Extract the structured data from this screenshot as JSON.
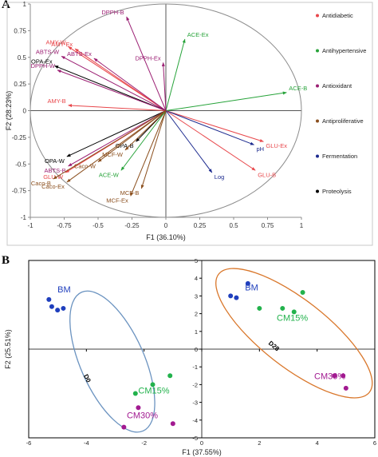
{
  "panel_a_label": "A",
  "panel_b_label": "B",
  "chart_data": [
    {
      "type": "scatter",
      "panel": "A",
      "title": "",
      "xlabel": "F1 (36.10%)",
      "ylabel": "F2 (28.23%)",
      "xlim": [
        -1,
        1
      ],
      "ylim": [
        -1,
        1
      ],
      "xticks": [
        "-1",
        "-0.75",
        "-0.5",
        "-0.25",
        "0",
        "0.25",
        "0.5",
        "0.75",
        "1"
      ],
      "yticks": [
        "1",
        "0.75",
        "0.5",
        "0.25",
        "0",
        "-0.25",
        "-0.5",
        "-0.75",
        "-1"
      ],
      "correlation_circle": true,
      "legend_position": "right",
      "groups": [
        {
          "name": "Antidiabetic",
          "color": "#e8474b"
        },
        {
          "name": "Antihypertensive",
          "color": "#27a33a"
        },
        {
          "name": "Antioxidant",
          "color": "#9b1f73"
        },
        {
          "name": "Antiproliferative",
          "color": "#8b4f1e"
        },
        {
          "name": "Fermentation",
          "color": "#1d2b8f"
        },
        {
          "name": "Proteolysis",
          "color": "#000000"
        }
      ],
      "vectors": [
        {
          "label": "DPPH-B",
          "group": 2,
          "x": -0.29,
          "y": 0.88
        },
        {
          "label": "ACE-Ex",
          "group": 1,
          "x": 0.14,
          "y": 0.67
        },
        {
          "label": "AMY-W",
          "group": 0,
          "x": -0.72,
          "y": 0.6
        },
        {
          "label": "AMY-Ex",
          "group": 0,
          "x": -0.67,
          "y": 0.58
        },
        {
          "label": "ABTS-W",
          "group": 2,
          "x": -0.77,
          "y": 0.51
        },
        {
          "label": "ABTS-Ex",
          "group": 2,
          "x": -0.53,
          "y": 0.49
        },
        {
          "label": "DPPH-Ex",
          "group": 2,
          "x": -0.02,
          "y": 0.45
        },
        {
          "label": "OPA-Ex",
          "group": 5,
          "x": -0.82,
          "y": 0.42
        },
        {
          "label": "DPPH-W",
          "group": 2,
          "x": -0.8,
          "y": 0.38
        },
        {
          "label": "ACE-B",
          "group": 1,
          "x": 0.89,
          "y": 0.17
        },
        {
          "label": "AMY-B",
          "group": 0,
          "x": -0.72,
          "y": 0.05
        },
        {
          "label": "GLU-Ex",
          "group": 0,
          "x": 0.72,
          "y": -0.29
        },
        {
          "label": "pH",
          "group": 4,
          "x": 0.65,
          "y": -0.32
        },
        {
          "label": "OPA-W",
          "group": 5,
          "x": -0.73,
          "y": -0.43
        },
        {
          "label": "OPA-B",
          "group": 5,
          "x": -0.22,
          "y": -0.29
        },
        {
          "label": "MCF-W",
          "group": 3,
          "x": -0.3,
          "y": -0.37
        },
        {
          "label": "ABTS-B",
          "group": 2,
          "x": -0.72,
          "y": -0.52
        },
        {
          "label": "GLU-W",
          "group": 0,
          "x": -0.74,
          "y": -0.58
        },
        {
          "label": "Caco-W",
          "group": 3,
          "x": -0.5,
          "y": -0.48
        },
        {
          "label": "ACE-W",
          "group": 1,
          "x": -0.33,
          "y": -0.56
        },
        {
          "label": "GLU-B",
          "group": 0,
          "x": 0.66,
          "y": -0.56
        },
        {
          "label": "Log",
          "group": 4,
          "x": 0.34,
          "y": -0.58
        },
        {
          "label": "Caco-B",
          "group": 3,
          "x": -0.83,
          "y": -0.64
        },
        {
          "label": "Caco-Ex",
          "group": 3,
          "x": -0.73,
          "y": -0.67
        },
        {
          "label": "MCF-B",
          "group": 3,
          "x": -0.18,
          "y": -0.73
        },
        {
          "label": "MCF-Ex",
          "group": 3,
          "x": -0.26,
          "y": -0.8
        }
      ]
    },
    {
      "type": "scatter",
      "panel": "B",
      "title": "",
      "xlabel": "F1 (37.55%)",
      "ylabel": "F2 (25.51%)",
      "xlim": [
        -6,
        6
      ],
      "ylim": [
        -5,
        5
      ],
      "xticks": [
        -6,
        -4,
        -2,
        0,
        2,
        4,
        6
      ],
      "yticks": [
        5,
        4,
        3,
        2,
        1,
        0,
        -1,
        -2,
        -3,
        -4,
        -5
      ],
      "ellipses": [
        {
          "label": "D0",
          "color": "#6b93c0"
        },
        {
          "label": "D28",
          "color": "#d9772b"
        }
      ],
      "series": [
        {
          "name": "BM",
          "color": "#1f3fbd",
          "points": [
            [
              -5.3,
              2.8
            ],
            [
              -5.2,
              2.4
            ],
            [
              -5.0,
              2.2
            ],
            [
              -4.8,
              2.3
            ],
            [
              1.0,
              3.0
            ],
            [
              1.6,
              3.7
            ],
            [
              1.2,
              2.9
            ]
          ]
        },
        {
          "name": "CM15%",
          "color": "#22b24c",
          "points": [
            [
              -1.1,
              -1.5
            ],
            [
              -1.7,
              -2.0
            ],
            [
              -2.3,
              -2.5
            ],
            [
              2.0,
              2.3
            ],
            [
              2.8,
              2.3
            ],
            [
              3.2,
              2.1
            ],
            [
              3.5,
              3.2
            ]
          ]
        },
        {
          "name": "CM30%",
          "color": "#a21a91",
          "points": [
            [
              -2.2,
              -3.3
            ],
            [
              -2.7,
              -4.4
            ],
            [
              -1.0,
              -4.2
            ],
            [
              4.6,
              -1.5
            ],
            [
              4.9,
              -1.5
            ],
            [
              5.0,
              -2.2
            ]
          ]
        }
      ],
      "annotations": [
        {
          "text": "BM",
          "color": "#1f3fbd",
          "x": -5.0,
          "y": 3.2
        },
        {
          "text": "CM15%",
          "color": "#22b24c",
          "x": -2.2,
          "y": -2.5
        },
        {
          "text": "CM30%",
          "color": "#a21a91",
          "x": -2.6,
          "y": -3.9
        },
        {
          "text": "BM",
          "color": "#1f3fbd",
          "x": 1.5,
          "y": 3.3
        },
        {
          "text": "CM15%",
          "color": "#22b24c",
          "x": 2.6,
          "y": 1.6
        },
        {
          "text": "CM30%",
          "color": "#a21a91",
          "x": 3.9,
          "y": -1.7
        },
        {
          "text": "D0",
          "color": "#000000",
          "x": -4.1,
          "y": -1.5
        },
        {
          "text": "D28",
          "color": "#000000",
          "x": 2.3,
          "y": 0.3
        }
      ]
    }
  ]
}
